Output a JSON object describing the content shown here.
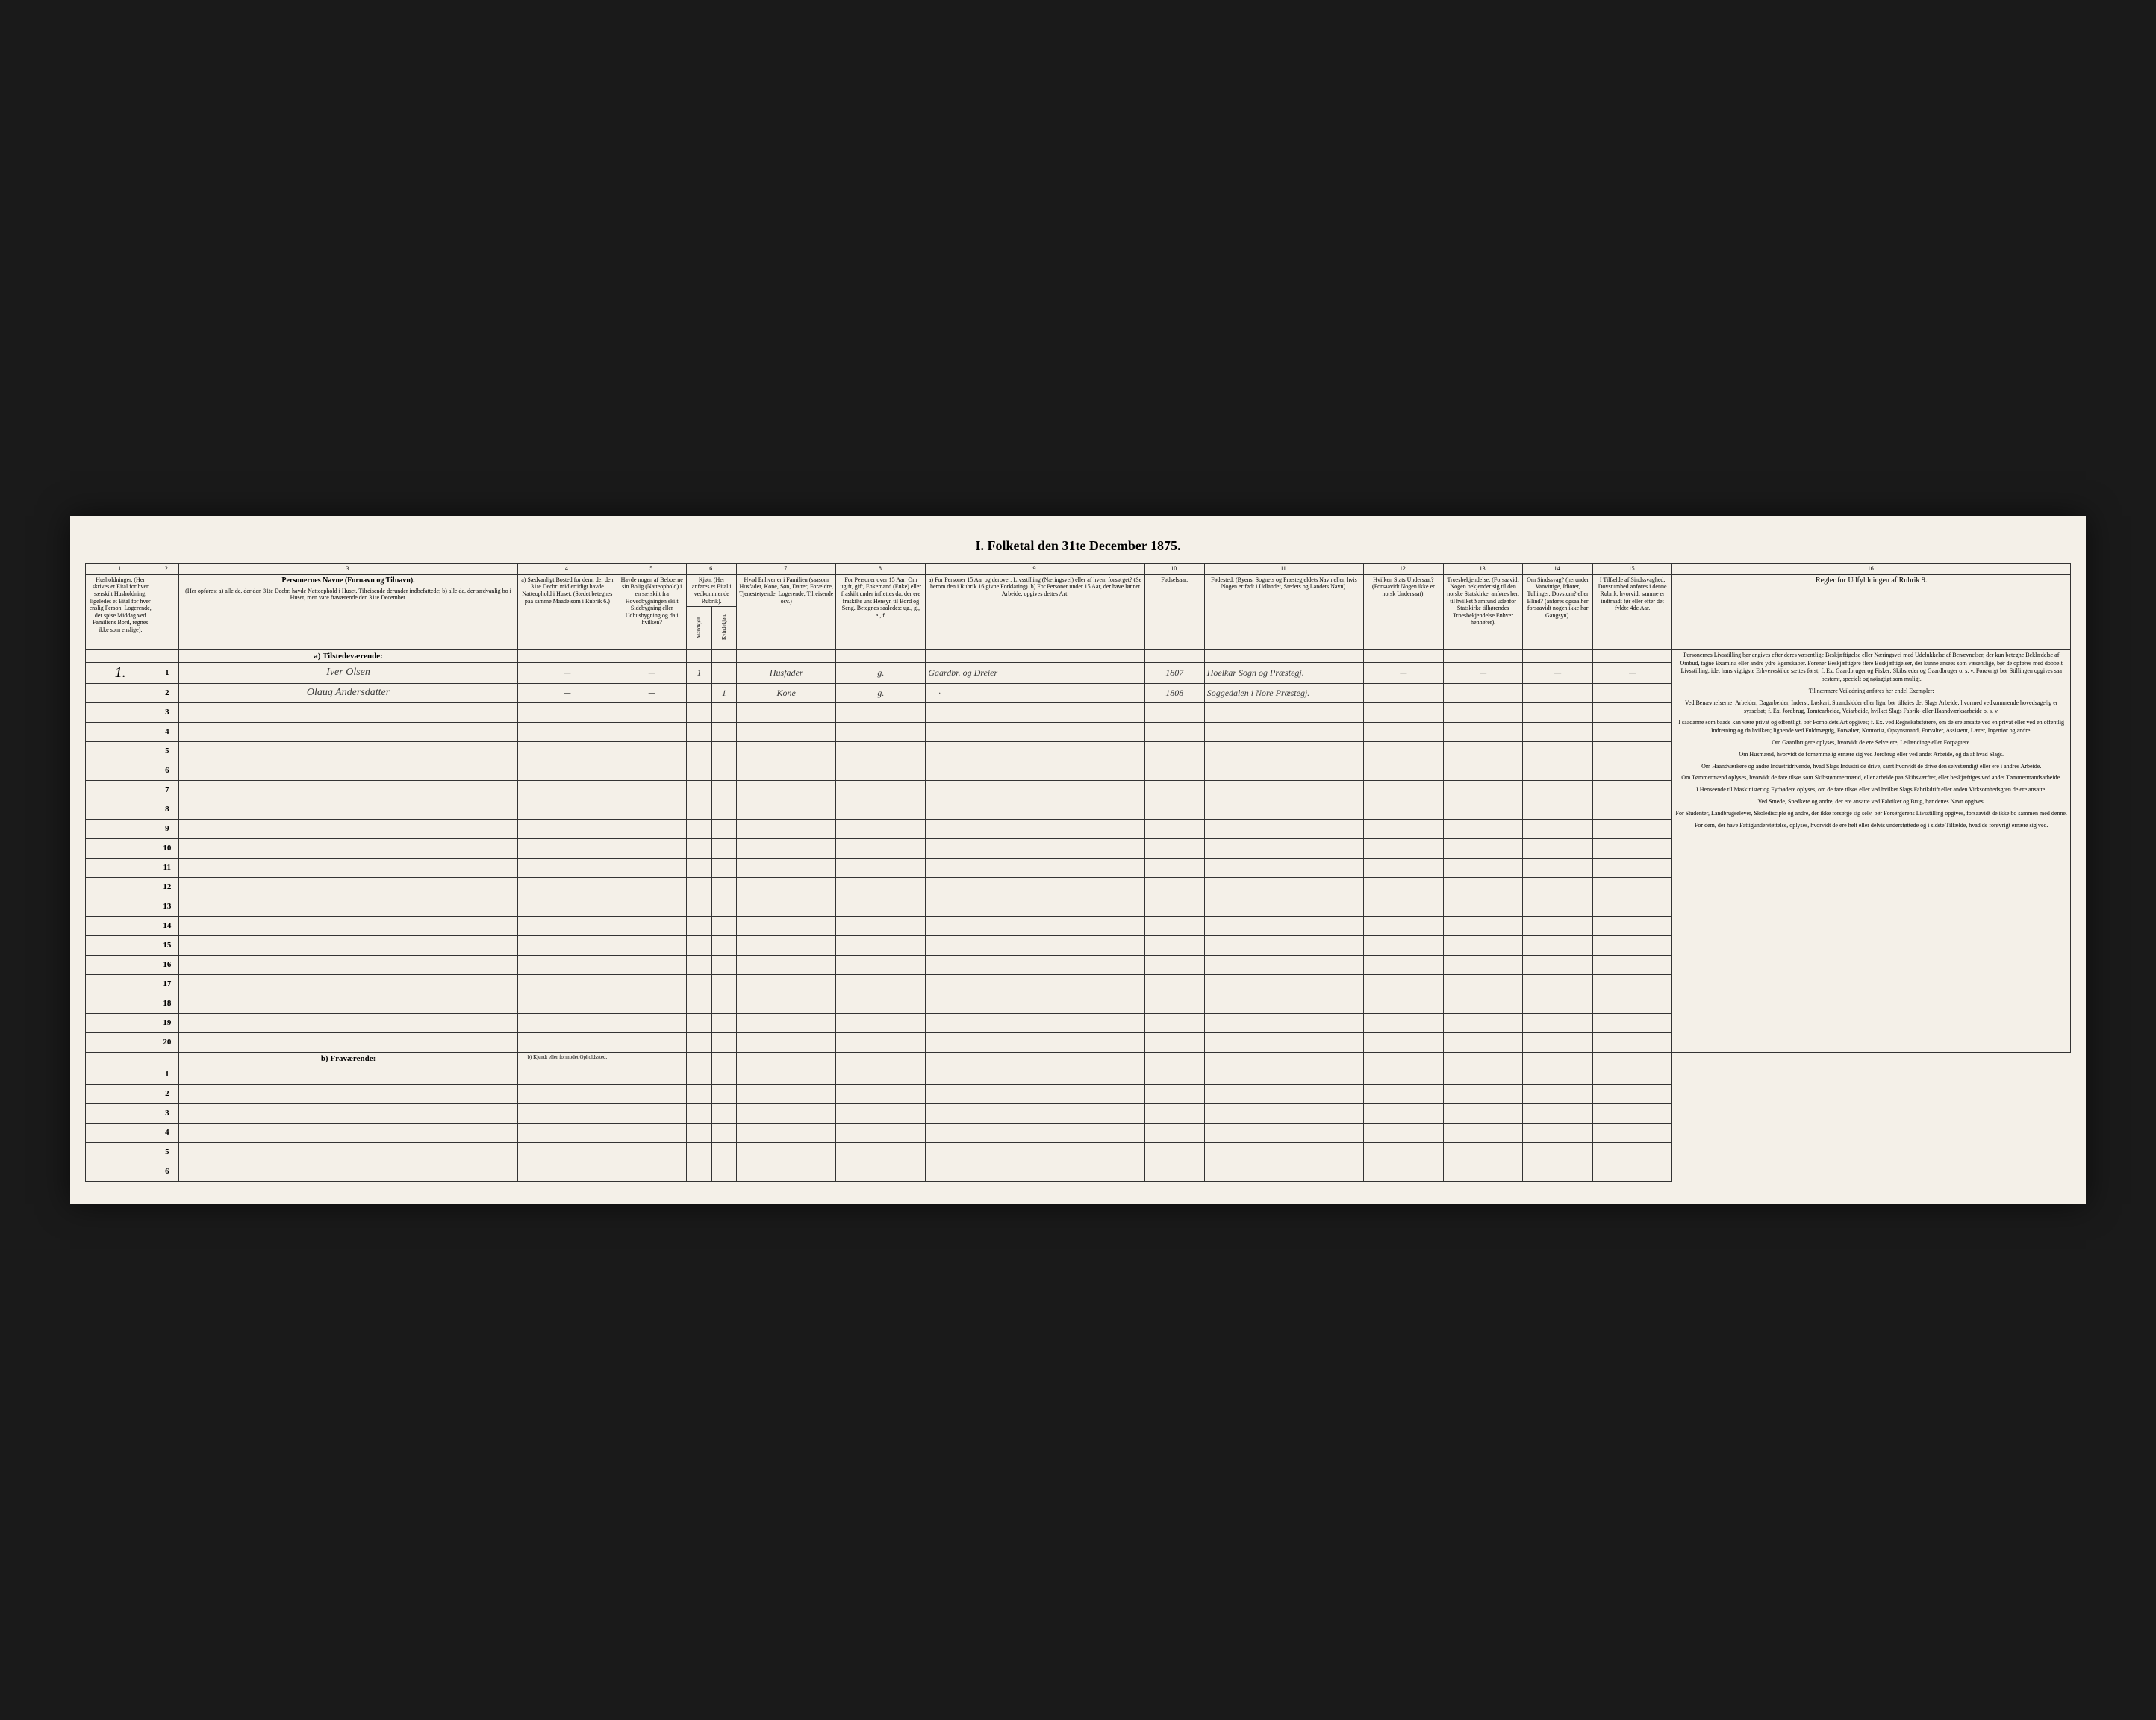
{
  "title": "I. Folketal den 31te December 1875.",
  "columns": {
    "nums": [
      "1.",
      "2.",
      "3.",
      "4.",
      "5.",
      "6.",
      "7.",
      "8.",
      "9.",
      "10.",
      "11.",
      "12.",
      "13.",
      "14.",
      "15.",
      "16."
    ],
    "h1": "Husholdninger. (Her skrives et Eital for hver særskilt Husholdning; ligeledes et Eital for hver enslig Person. Logerende, der spise Middag ved Familiens Bord, regnes ikke som enslige).",
    "h3_title": "Personernes Navne (Fornavn og Tilnavn).",
    "h3_sub": "(Her opføres: a) alle de, der den 31te Decbr. havde Natteophold i Huset, Tilreisende derunder indbefattede; b) alle de, der sædvanlig bo i Huset, men vare fraværende den 31te December.",
    "h4": "a) Sædvanligt Bosted for dem, der den 31te Decbr. midlertidigt havde Natteophold i Huset. (Stedet betegnes paa samme Maade som i Rubrik 6.)",
    "h5": "Havde nogen af Beboerne sin Bolig (Natteophold) i en særskilt fra Hovedbygningen skilt Sidebygning eller Udhusbygning og da i hvilken?",
    "h6": "Kjøn. (Her anføres et Eital i vedkommende Rubrik).",
    "h6a": "Mandkjøn.",
    "h6b": "Kvindekjøn.",
    "h7": "Hvad Enhver er i Familien (saasom Husfader, Kone, Søn, Datter, Forældre, Tjenestetyende, Logerende, Tilreisende osv.)",
    "h8": "For Personer over 15 Aar: Om ugift, gift, Enkemand (Enke) eller fraskilt under inflettes da, der ere fraskilte uns Hensyn til Bord og Seng. Betegnes saaledes: ug., g., e., f.",
    "h9": "a) For Personer 15 Aar og derover: Livsstilling (Næringsvei) eller af hvem forsørget? (Se herom den i Rubrik 16 givne Forklaring). b) For Personer under 15 Aar, der have lønnet Arbeide, opgives dettes Art.",
    "h10": "Fødselsaar.",
    "h11": "Fødested. (Byens, Sognets og Præstegjeldets Navn eller, hvis Nogen er født i Udlandet, Stedets og Landets Navn).",
    "h12": "Hvilken Stats Undersaat? (Forsaavidt Nogen ikke er norsk Undersaat).",
    "h13": "Troesbekjendelse. (Forsaavidt Nogen bekjender sig til den norske Statskirke, anføres her, til hvilket Samfund udenfor Statskirke tilhørendes Troesbekjendelse Enhver henhører).",
    "h14": "Om Sindssvag? (herunder Vanvittige, Idioter, Tullinger, Dovstum? eller Blind? (anføres ogsaa her forsaavidt nogen ikke har Gangsyn).",
    "h15": "I Tilfælde af Sindssvaghed, Dovstumhed anføres i denne Rubrik, hvorvidt samme er indtraadt før eller efter det fyldte 4de Aar.",
    "h16_title": "Regler for Udfyldningen af Rubrik 9."
  },
  "section_a": "a) Tilstedeværende:",
  "section_b": "b) Fraværende:",
  "section_b_col4": "b) Kjendt eller formodet Opholdssted.",
  "household": "1.",
  "rows_a": [
    {
      "n": "1",
      "name": "Iver Olsen",
      "c4": "—",
      "c5": "—",
      "c6a": "1",
      "c6b": "",
      "c7": "Husfader",
      "c8": "g.",
      "c9": "Gaardbr. og Dreier",
      "c10": "1807",
      "c11": "Hoelkar Sogn og Præstegj.",
      "c12": "—",
      "c13": "—",
      "c14": "—",
      "c15": "—"
    },
    {
      "n": "2",
      "name": "Olaug Andersdatter",
      "c4": "—",
      "c5": "—",
      "c6a": "",
      "c6b": "1",
      "c7": "Kone",
      "c8": "g.",
      "c9": "— · —",
      "c10": "1808",
      "c11": "Soggedalen i Nore Præstegj.",
      "c12": "",
      "c13": "",
      "c14": "",
      "c15": ""
    },
    {
      "n": "3"
    },
    {
      "n": "4"
    },
    {
      "n": "5"
    },
    {
      "n": "6"
    },
    {
      "n": "7"
    },
    {
      "n": "8"
    },
    {
      "n": "9"
    },
    {
      "n": "10"
    },
    {
      "n": "11"
    },
    {
      "n": "12"
    },
    {
      "n": "13"
    },
    {
      "n": "14"
    },
    {
      "n": "15"
    },
    {
      "n": "16"
    },
    {
      "n": "17"
    },
    {
      "n": "18"
    },
    {
      "n": "19"
    },
    {
      "n": "20"
    }
  ],
  "rows_b": [
    {
      "n": "1"
    },
    {
      "n": "2"
    },
    {
      "n": "3"
    },
    {
      "n": "4"
    },
    {
      "n": "5"
    },
    {
      "n": "6"
    }
  ],
  "rules": {
    "p1": "Personernes Livsstilling bør angives efter deres væsentlige Beskjæftigelse eller Næringsvei med Udelukkelse af Benævnelser, der kun betegne Beklædelse af Ombud, tagne Examina eller andre ydre Egenskaber. Forener Beskjæftigere flere Beskjæftigelser, der kunne ansees som væsentlige, bør de opføres med dobbelt Livsstilling, idet hans vigtigste Erhvervskilde sættes først; f. Ex. Gaardbruger og Fisker; Skibsreder og Gaardbruger o. s. v. Forøvrigt bør Stillingen opgives saa bestemt, specielt og nøiagtigt som muligt.",
    "p2": "Til nærmere Veiledning anføres her endel Exempler:",
    "p3": "Ved Benævnelserne: Arbeider, Dagarbeider, Inderst, Løskari, Strandsidder eller lign. bør tilføies det Slags Arbeide, hvormed vedkommende hovedsagelig er sysselsat; f. Ex. Jordbrug, Tomtearbeide, Veiarbeide, hvilket Slags Fabrik- eller Haandværksarbeide o. s. v.",
    "p4": "I saadanne som baade kan være privat og offentligt, bør Forholdets Art opgives; f. Ex. ved Regnskabsførere, om de ere ansatte ved en privat eller ved en offentlig Indretning og da hvilken; lignende ved Fuldmægtig, Forvalter, Kontorist, Opsynsmand, Forvalter, Assistent, Lærer, Ingeniør og andre.",
    "p5": "Om Gaardbrugere oplyses, hvorvidt de ere Selveiere, Leilændinge eller Forpagtere.",
    "p6": "Om Husmænd, hvorvidt de fornemmelig ernære sig ved Jordbrug eller ved andet Arbeide, og da af hvad Slags.",
    "p7": "Om Haandværkere og andre Industridrivende, hvad Slags Industri de drive, samt hvorvidt de drive den selvstændigt eller ere i andres Arbeide.",
    "p8": "Om Tømmermænd oplyses, hvorvidt de fare tilsøs som Skibstømmermænd, eller arbeide paa Skibsværfter, eller beskjæftiges ved andet Tømmermandsarbeide.",
    "p9": "I Henseende til Maskinister og Fyrbødere oplyses, om de fare tilsøs eller ved hvilket Slags Fabrikdrift eller anden Virksomhedsgren de ere ansatte.",
    "p10": "Ved Smede, Snedkere og andre, der ere ansatte ved Fabriker og Brug, bør dettes Navn opgives.",
    "p11": "For Studenter, Landbrugselever, Skoledisciple og andre, der ikke forsørge sig selv, bør Forsørgerens Livsstilling opgives, forsaavidt de ikke bo sammen med denne.",
    "p12": "For dem, der have Fattigunderstøttelse, oplyses, hvorvidt de ere helt eller delvis understøttede og i sidste Tilfælde, hvad de forøvrigt ernære sig ved."
  }
}
